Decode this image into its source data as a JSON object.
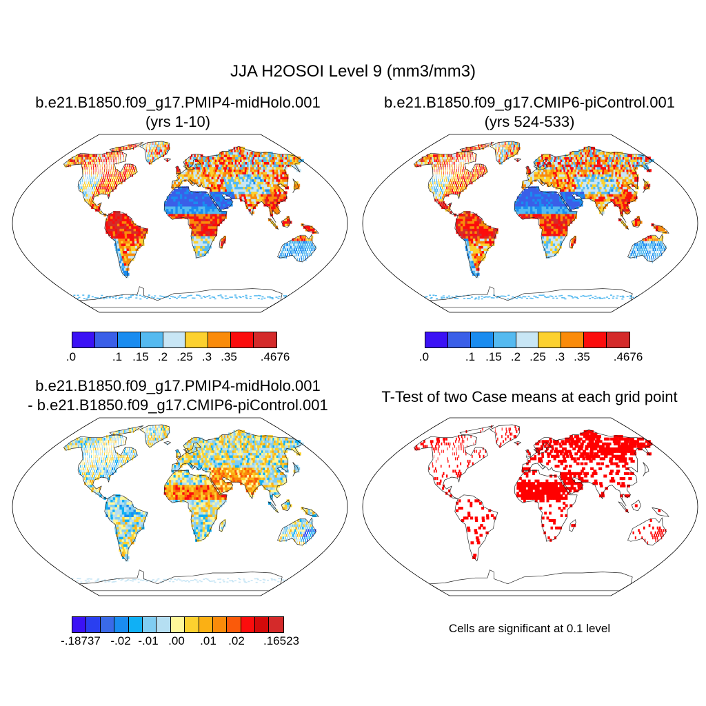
{
  "title": "JJA H2OSOI Level 9 (mm3/mm3)",
  "panels": [
    {
      "id": "p1",
      "title_line1": "b.e21.B1850.f09_g17.PMIP4-midHolo.001",
      "title_line2": "(yrs 1-10)"
    },
    {
      "id": "p2",
      "title_line1": "b.e21.B1850.f09_g17.CMIP6-piControl.001",
      "title_line2": "(yrs 524-533)"
    },
    {
      "id": "p3",
      "title_line1": "b.e21.B1850.f09_g17.PMIP4-midHolo.001",
      "title_line2": "- b.e21.B1850.f09_g17.CMIP6-piControl.001"
    },
    {
      "id": "p4",
      "title_line1": "T-Test of two Case means at each grid point",
      "title_line2": ""
    }
  ],
  "colorbar_case": {
    "colors": [
      "#3b12f5",
      "#3a5fe8",
      "#1a8cf0",
      "#55baf0",
      "#c8e6f5",
      "#fcd12f",
      "#fa8b0a",
      "#fb0d0d",
      "#d42a2a"
    ],
    "labels": [
      ".0",
      ".1",
      ".15",
      ".2",
      ".25",
      ".3",
      ".35",
      ".4676"
    ]
  },
  "colorbar_diff": {
    "colors": [
      "#3b12f5",
      "#2a3ff0",
      "#3a6ae8",
      "#1a8cf0",
      "#10b0f5",
      "#80cdf2",
      "#b5dff2",
      "#fff79a",
      "#fcd12f",
      "#fbb014",
      "#fa8b0a",
      "#fa5a0a",
      "#fb0d0d",
      "#d40a0a",
      "#d42a2a"
    ],
    "labels": [
      "-.18737",
      "-.02",
      "-.01",
      ".00",
      ".01",
      ".02",
      ".16523"
    ]
  },
  "significance_color": "#ff0000",
  "significance_note": "Cells are significant at 0.1 level"
}
